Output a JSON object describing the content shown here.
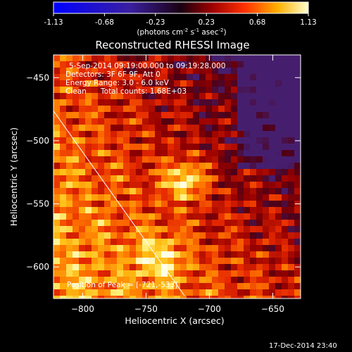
{
  "colorbar": {
    "ticks": [
      "-1.13",
      "-0.68",
      "-0.23",
      "0.23",
      "0.68",
      "1.13"
    ],
    "units_parts": [
      "(photons cm",
      "-2",
      " s",
      "-1",
      " asec",
      "-2",
      ")"
    ]
  },
  "plot": {
    "title": "Reconstructed RHESSI Image",
    "info_lines": [
      "5-Sep-2014 09:19:00.000 to 09:19:28.000",
      "Detectors: 3F 6F 9F, Att 0",
      "Energy Range: 3.0 - 6.0 keV"
    ],
    "clean_label": "Clean",
    "total_counts": "Total counts: 1.68E+03",
    "peak_label": "Position of Peak = [-721,-533]",
    "xlabel": "Heliocentric X (arcsec)",
    "ylabel": "Heliocentric Y (arcsec)",
    "x_ticks": [
      "-800",
      "-750",
      "-700",
      "-650"
    ],
    "y_ticks": [
      "-450",
      "-500",
      "-550",
      "-600"
    ],
    "x_range": [
      -823,
      -628
    ],
    "y_range": [
      -625,
      -432
    ]
  },
  "footer": {
    "timestamp": "17-Dec-2014 23:40"
  }
}
